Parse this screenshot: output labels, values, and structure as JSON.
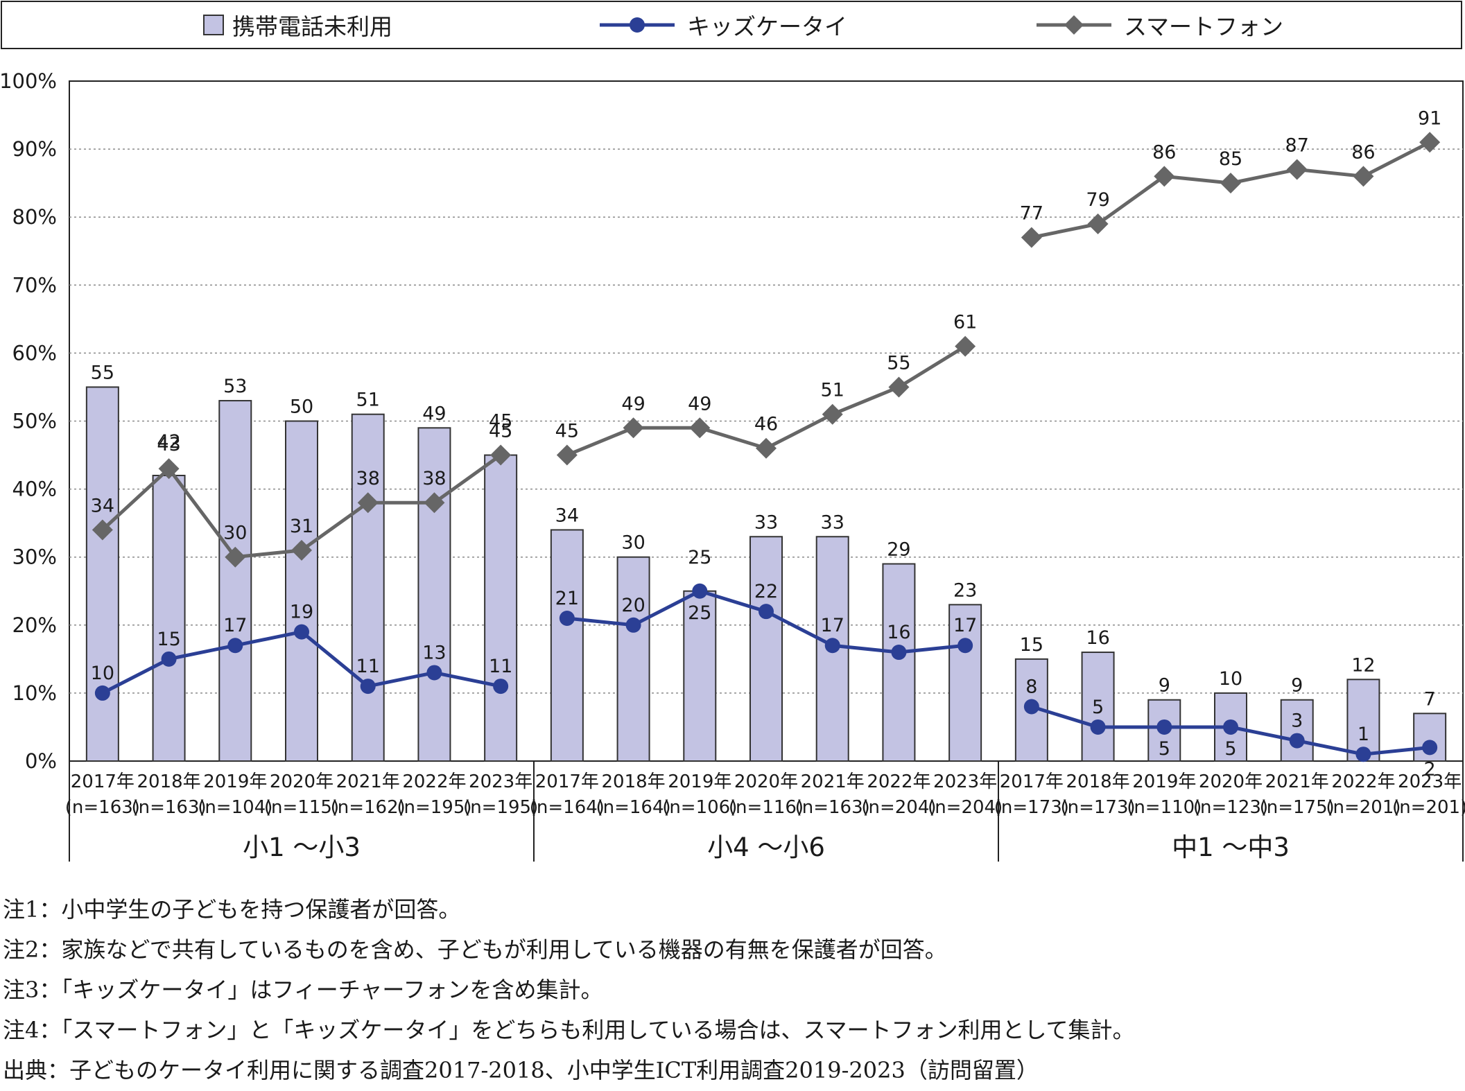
{
  "colors": {
    "bar_fill": "#c3c3e3",
    "bar_stroke": "#333333",
    "kids_line": "#2b3f95",
    "smartphone_line": "#666666"
  },
  "legend": {
    "bar_label": "携帯電話未利用",
    "kids_label": "キッズケータイ",
    "smartphone_label": "スマートフォン"
  },
  "notes": [
    "注1：小中学生の子どもを持つ保護者が回答。",
    "注2：家族などで共有しているものを含め、子どもが利用している機器の有無を保護者が回答。",
    "注3：「キッズケータイ」はフィーチャーフォンを含め集計。",
    "注4：「スマートフォン」と「キッズケータイ」をどちらも利用している場合は、スマートフォン利用として集計。",
    "出典：子どものケータイ利用に関する調査2017-2018、小中学生ICT利用調査2019-2023（訪問留置）"
  ],
  "chart_data": {
    "type": "bar",
    "ylim": [
      0,
      100
    ],
    "yticks": [
      "0%",
      "10%",
      "20%",
      "30%",
      "40%",
      "50%",
      "60%",
      "70%",
      "80%",
      "90%",
      "100%"
    ],
    "grid": true,
    "legend_position": "top",
    "groups": [
      {
        "name": "小1 ～小3",
        "categories": [
          "2017年",
          "2018年",
          "2019年",
          "2020年",
          "2021年",
          "2022年",
          "2023年"
        ],
        "n": [
          "(n=163)",
          "(n=163)",
          "(n=104)",
          "(n=115)",
          "(n=162)",
          "(n=195)",
          "(n=195)"
        ],
        "no_phone": [
          55,
          42,
          53,
          50,
          51,
          49,
          45
        ],
        "kids_phone": [
          10,
          15,
          17,
          19,
          11,
          13,
          11
        ],
        "smartphone": [
          34,
          43,
          30,
          31,
          38,
          38,
          45
        ]
      },
      {
        "name": "小4 ～小6",
        "categories": [
          "2017年",
          "2018年",
          "2019年",
          "2020年",
          "2021年",
          "2022年",
          "2023年"
        ],
        "n": [
          "(n=164)",
          "(n=164)",
          "(n=106)",
          "(n=116)",
          "(n=163)",
          "(n=204)",
          "(n=204)"
        ],
        "no_phone": [
          34,
          30,
          25,
          33,
          33,
          29,
          23
        ],
        "kids_phone": [
          21,
          20,
          25,
          22,
          17,
          16,
          17
        ],
        "smartphone": [
          45,
          49,
          49,
          46,
          51,
          55,
          61
        ]
      },
      {
        "name": "中1 ～中3",
        "categories": [
          "2017年",
          "2018年",
          "2019年",
          "2020年",
          "2021年",
          "2022年",
          "2023年"
        ],
        "n": [
          "(n=173)",
          "(n=173)",
          "(n=110)",
          "(n=123)",
          "(n=175)",
          "(n=201)",
          "(n=201)"
        ],
        "no_phone": [
          15,
          16,
          9,
          10,
          9,
          12,
          7
        ],
        "kids_phone": [
          8,
          5,
          5,
          5,
          3,
          1,
          2
        ],
        "smartphone": [
          77,
          79,
          86,
          85,
          87,
          86,
          91
        ]
      }
    ]
  }
}
